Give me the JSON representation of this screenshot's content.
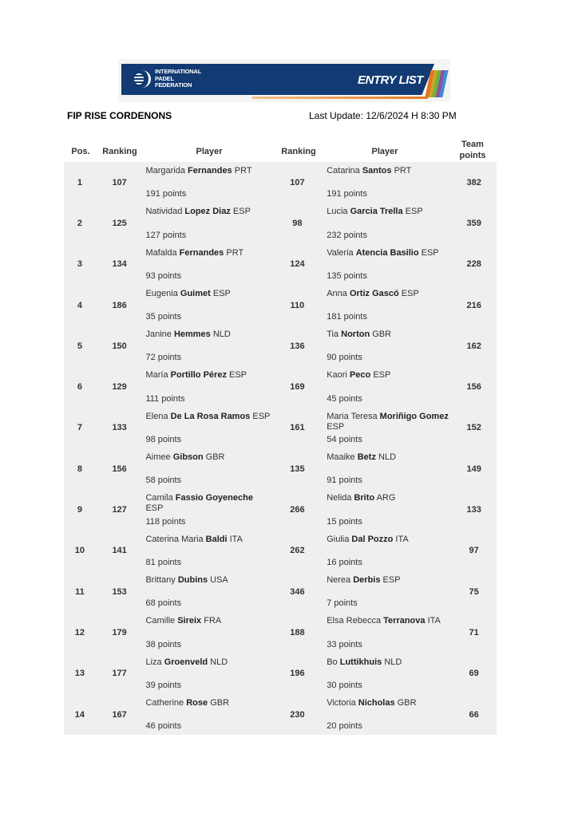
{
  "banner": {
    "org_line1": "INTERNATIONAL",
    "org_line2": "PADEL",
    "org_line3": "FEDERATION",
    "title": "ENTRY LIST",
    "colors": {
      "navy": "#123a73",
      "orange": "#e57b22"
    }
  },
  "header": {
    "tournament": "FIP RISE CORDENONS",
    "last_update": "Last Update:  12/6/2024 H 8:30 PM"
  },
  "columns": {
    "pos": "Pos.",
    "ranking1": "Ranking",
    "player1": "Player",
    "ranking2": "Ranking",
    "player2": "Player",
    "team_points_1": "Team",
    "team_points_2": "points"
  },
  "rows": [
    {
      "pos": "1",
      "p1": {
        "ranking": "107",
        "first": "Margarida",
        "last": "Fernandes",
        "nat": "PRT",
        "points": "191 points"
      },
      "p2": {
        "ranking": "107",
        "first": "Catarina",
        "last": "Santos",
        "nat": "PRT",
        "points": "191 points"
      },
      "team": "382"
    },
    {
      "pos": "2",
      "p1": {
        "ranking": "125",
        "first": "Natividad",
        "last": "Lopez Diaz",
        "nat": "ESP",
        "points": "127 points"
      },
      "p2": {
        "ranking": "98",
        "first": "Lucia",
        "last": "Garcia Trella",
        "nat": "ESP",
        "points": "232 points"
      },
      "team": "359"
    },
    {
      "pos": "3",
      "p1": {
        "ranking": "134",
        "first": "Mafalda",
        "last": "Fernandes",
        "nat": "PRT",
        "points": "93 points"
      },
      "p2": {
        "ranking": "124",
        "first": "Valeria",
        "last": "Atencia Basilio",
        "nat": "ESP",
        "points": "135 points"
      },
      "team": "228"
    },
    {
      "pos": "4",
      "p1": {
        "ranking": "186",
        "first": "Eugenia",
        "last": "Guimet",
        "nat": "ESP",
        "points": "35 points"
      },
      "p2": {
        "ranking": "110",
        "first": "Anna",
        "last": "Ortiz Gascó",
        "nat": "ESP",
        "points": "181 points"
      },
      "team": "216"
    },
    {
      "pos": "5",
      "p1": {
        "ranking": "150",
        "first": "Janine",
        "last": "Hemmes",
        "nat": "NLD",
        "points": "72 points"
      },
      "p2": {
        "ranking": "136",
        "first": "Tia",
        "last": "Norton",
        "nat": "GBR",
        "points": "90 points"
      },
      "team": "162"
    },
    {
      "pos": "6",
      "p1": {
        "ranking": "129",
        "first": "María",
        "last": "Portillo Pérez",
        "nat": "ESP",
        "points": "111 points"
      },
      "p2": {
        "ranking": "169",
        "first": "Kaori",
        "last": "Peco",
        "nat": "ESP",
        "points": "45 points"
      },
      "team": "156"
    },
    {
      "pos": "7",
      "p1": {
        "ranking": "133",
        "first": "Elena",
        "last": "De La Rosa Ramos",
        "nat": "ESP",
        "points": "98 points"
      },
      "p2": {
        "ranking": "161",
        "first": "Maria Teresa",
        "last": "Moriñigo Gomez",
        "nat": "ESP",
        "points": "54 points"
      },
      "team": "152"
    },
    {
      "pos": "8",
      "p1": {
        "ranking": "156",
        "first": "Aimee",
        "last": "Gibson",
        "nat": "GBR",
        "points": "58 points"
      },
      "p2": {
        "ranking": "135",
        "first": "Maaike",
        "last": "Betz",
        "nat": "NLD",
        "points": "91 points"
      },
      "team": "149"
    },
    {
      "pos": "9",
      "p1": {
        "ranking": "127",
        "first": "Camila",
        "last": "Fassio Goyeneche",
        "nat": "ESP",
        "points": "118 points"
      },
      "p2": {
        "ranking": "266",
        "first": "Nelida",
        "last": "Brito",
        "nat": "ARG",
        "points": "15 points"
      },
      "team": "133"
    },
    {
      "pos": "10",
      "p1": {
        "ranking": "141",
        "first": "Caterina Maria",
        "last": "Baldi",
        "nat": "ITA",
        "points": "81 points"
      },
      "p2": {
        "ranking": "262",
        "first": "Giulia",
        "last": "Dal Pozzo",
        "nat": "ITA",
        "points": "16 points"
      },
      "team": "97"
    },
    {
      "pos": "11",
      "p1": {
        "ranking": "153",
        "first": "Brittany",
        "last": "Dubins",
        "nat": "USA",
        "points": "68 points"
      },
      "p2": {
        "ranking": "346",
        "first": "Nerea",
        "last": "Derbis",
        "nat": "ESP",
        "points": "7 points"
      },
      "team": "75"
    },
    {
      "pos": "12",
      "p1": {
        "ranking": "179",
        "first": "Camille",
        "last": "Sireix",
        "nat": "FRA",
        "points": "38 points"
      },
      "p2": {
        "ranking": "188",
        "first": "Elsa Rebecca",
        "last": "Terranova",
        "nat": "ITA",
        "points": "33 points"
      },
      "team": "71"
    },
    {
      "pos": "13",
      "p1": {
        "ranking": "177",
        "first": "Liza",
        "last": "Groenveld",
        "nat": "NLD",
        "points": "39 points"
      },
      "p2": {
        "ranking": "196",
        "first": "Bo",
        "last": "Luttikhuis",
        "nat": "NLD",
        "points": "30 points"
      },
      "team": "69"
    },
    {
      "pos": "14",
      "p1": {
        "ranking": "167",
        "first": "Catherine",
        "last": "Rose",
        "nat": "GBR",
        "points": "46 points"
      },
      "p2": {
        "ranking": "230",
        "first": "Victoria",
        "last": "Nicholas",
        "nat": "GBR",
        "points": "20 points"
      },
      "team": "66"
    }
  ]
}
